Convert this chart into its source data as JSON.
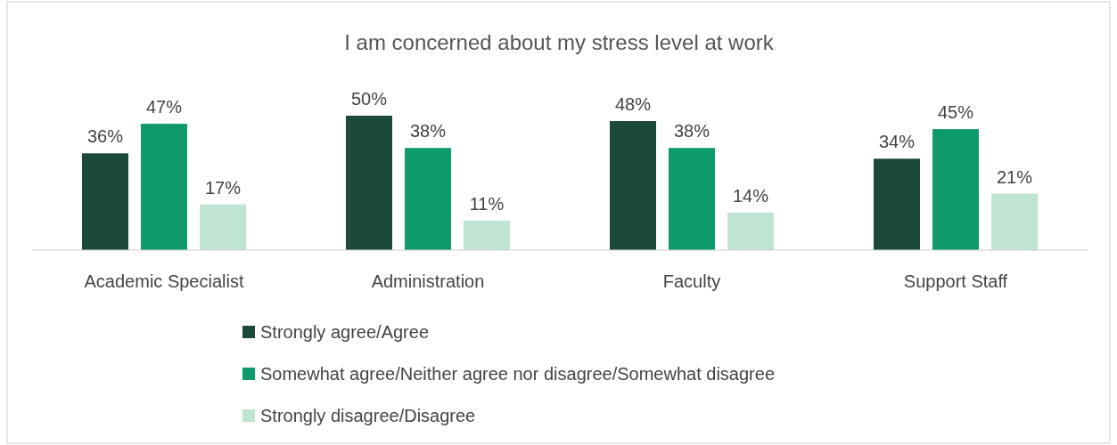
{
  "chart_data": {
    "type": "bar",
    "title": "I am concerned about my stress level at work",
    "categories": [
      "Academic Specialist",
      "Administration",
      "Faculty",
      "Support Staff"
    ],
    "series": [
      {
        "name": "Strongly agree/Agree",
        "color": "#1b4a3d",
        "values": [
          36,
          50,
          48,
          34
        ],
        "value_labels": [
          "36%",
          "50%",
          "48%",
          "34%"
        ]
      },
      {
        "name": "Somewhat agree/Neither agree nor disagree/Somewhat disagree",
        "color": "#0f9a6e",
        "values": [
          47,
          38,
          38,
          45
        ],
        "value_labels": [
          "47%",
          "38%",
          "38%",
          "45%"
        ]
      },
      {
        "name": "Strongly disagree/Disagree",
        "color": "#c0e4d2",
        "values": [
          17,
          11,
          14,
          21
        ],
        "value_labels": [
          "17%",
          "11%",
          "14%",
          "21%"
        ]
      }
    ],
    "legend": "bottom",
    "grid": false
  }
}
